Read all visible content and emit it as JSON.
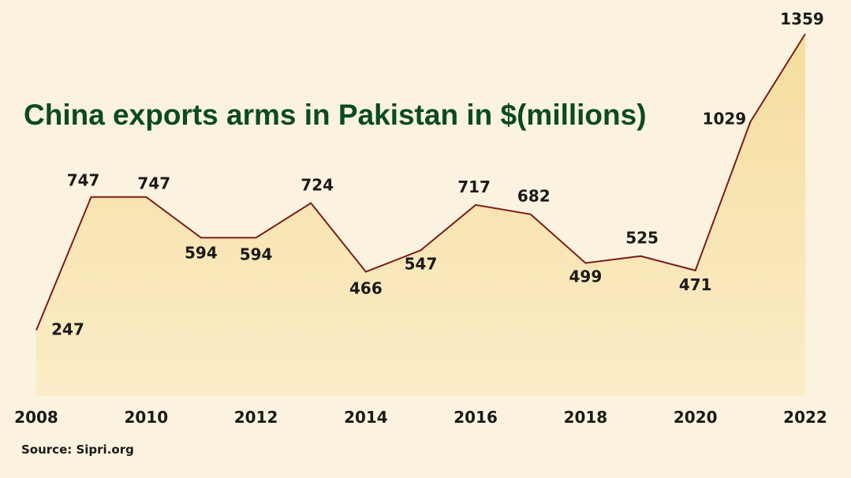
{
  "chart_data": {
    "type": "area",
    "title": "China exports arms in Pakistan in $(millions)",
    "source": "Source: Sipri.org",
    "x": [
      2008,
      2009,
      2010,
      2011,
      2012,
      2013,
      2014,
      2015,
      2016,
      2017,
      2018,
      2019,
      2020,
      2021,
      2022
    ],
    "x_tick_labels": [
      "2008",
      "2010",
      "2012",
      "2014",
      "2016",
      "2018",
      "2020",
      "2022"
    ],
    "values": [
      247,
      747,
      747,
      594,
      594,
      724,
      466,
      547,
      717,
      682,
      499,
      525,
      471,
      1029,
      1359
    ],
    "ylim": [
      0,
      1400
    ],
    "grid": false,
    "legend": "none",
    "colors": {
      "background": "#fbf3df",
      "fill_top": "#f6dd9e",
      "fill_bottom": "#fbedc8",
      "line": "#7a1c1c",
      "title": "#0b4a22",
      "text": "#1a1a1a"
    }
  }
}
